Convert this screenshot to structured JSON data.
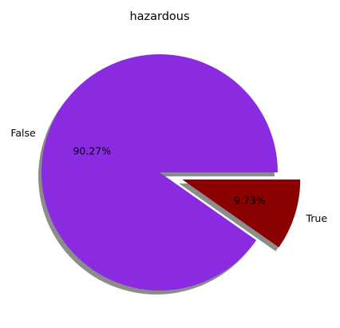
{
  "chart_data": {
    "type": "pie",
    "title": "hazardous",
    "slices": [
      {
        "label": "False",
        "value": 90.27,
        "pct_label": "90.27%",
        "color": "#8a2be2",
        "explode": 0
      },
      {
        "label": "True",
        "value": 9.73,
        "pct_label": "9.73%",
        "color": "#8b0000",
        "explode": 0.2
      }
    ],
    "shadow": true,
    "start_angle_deg": 0,
    "legend": "none"
  }
}
